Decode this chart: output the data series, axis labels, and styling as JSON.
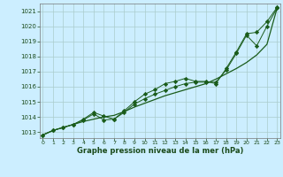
{
  "bg_color": "#cceeff",
  "grid_color": "#aacccc",
  "line_color": "#1a5c1a",
  "xlabel": "Graphe pression niveau de la mer (hPa)",
  "x_ticks": [
    0,
    1,
    2,
    3,
    4,
    5,
    6,
    7,
    8,
    9,
    10,
    11,
    12,
    13,
    14,
    15,
    16,
    17,
    18,
    19,
    20,
    21,
    22,
    23
  ],
  "ylim": [
    1012.6,
    1021.5
  ],
  "xlim": [
    -0.3,
    23.3
  ],
  "yticks": [
    1013,
    1014,
    1015,
    1016,
    1017,
    1018,
    1019,
    1020,
    1021
  ],
  "series1": [
    1012.8,
    1013.1,
    1013.3,
    1013.5,
    1013.7,
    1013.85,
    1014.0,
    1014.1,
    1014.35,
    1014.65,
    1014.9,
    1015.15,
    1015.4,
    1015.6,
    1015.8,
    1016.0,
    1016.2,
    1016.5,
    1016.85,
    1017.2,
    1017.6,
    1018.1,
    1018.8,
    1021.2
  ],
  "series2": [
    1012.8,
    1013.1,
    1013.3,
    1013.5,
    1013.8,
    1014.2,
    1013.8,
    1013.85,
    1014.3,
    1014.85,
    1015.2,
    1015.5,
    1015.75,
    1016.0,
    1016.2,
    1016.3,
    1016.3,
    1016.3,
    1017.1,
    1018.2,
    1019.4,
    1018.7,
    1020.0,
    1021.2
  ],
  "series3": [
    1012.8,
    1013.1,
    1013.3,
    1013.5,
    1013.85,
    1014.3,
    1014.05,
    1013.85,
    1014.4,
    1015.0,
    1015.5,
    1015.8,
    1016.2,
    1016.35,
    1016.55,
    1016.35,
    1016.35,
    1016.2,
    1017.2,
    1018.3,
    1019.5,
    1019.6,
    1020.3,
    1021.25
  ]
}
